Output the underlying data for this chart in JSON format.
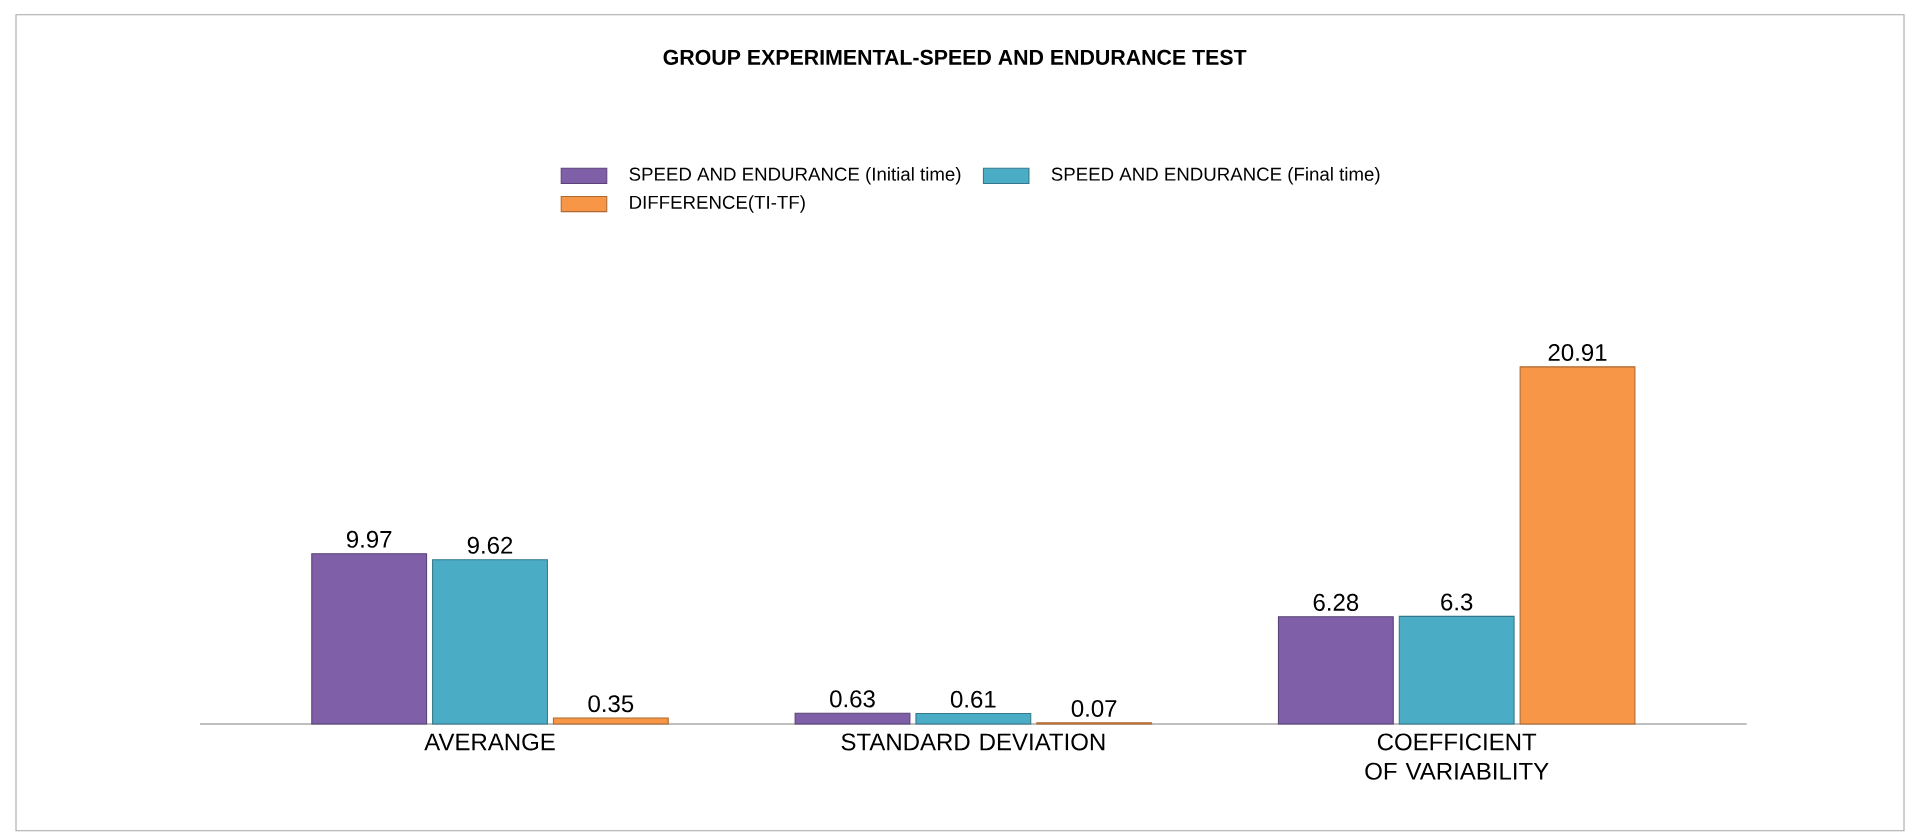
{
  "chart_data": {
    "type": "bar",
    "title": "GROUP EXPERIMENTAL-SPEED AND ENDURANCE TEST",
    "categories": [
      "AVERANGE",
      "STANDARD DEVIATION",
      "COEFFICIENT OF VARIABILITY"
    ],
    "series": [
      {
        "name": "SPEED AND ENDURANCE (Initial time)",
        "color": "#7f5fa8",
        "values": [
          9.97,
          0.63,
          6.28
        ]
      },
      {
        "name": "SPEED AND ENDURANCE (Final time)",
        "color": "#4bacc6",
        "values": [
          9.62,
          0.61,
          6.3
        ]
      },
      {
        "name": "DIFFERENCE(TI-TF)",
        "color": "#f79646",
        "values": [
          0.35,
          0.07,
          20.91
        ]
      }
    ],
    "data_labels": true,
    "legend": "top"
  }
}
